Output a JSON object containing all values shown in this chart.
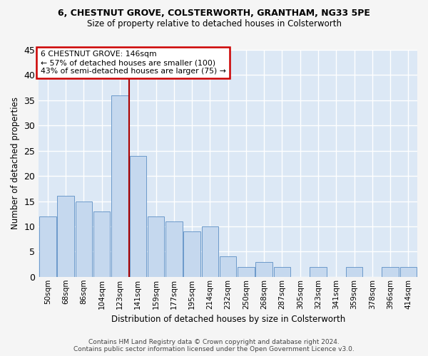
{
  "title_line1": "6, CHESTNUT GROVE, COLSTERWORTH, GRANTHAM, NG33 5PE",
  "title_line2": "Size of property relative to detached houses in Colsterworth",
  "xlabel": "Distribution of detached houses by size in Colsterworth",
  "ylabel": "Number of detached properties",
  "categories": [
    "50sqm",
    "68sqm",
    "86sqm",
    "104sqm",
    "123sqm",
    "141sqm",
    "159sqm",
    "177sqm",
    "195sqm",
    "214sqm",
    "232sqm",
    "250sqm",
    "268sqm",
    "287sqm",
    "305sqm",
    "323sqm",
    "341sqm",
    "359sqm",
    "378sqm",
    "396sqm",
    "414sqm"
  ],
  "values": [
    12,
    16,
    15,
    13,
    36,
    24,
    12,
    11,
    9,
    10,
    4,
    2,
    3,
    2,
    0,
    2,
    0,
    2,
    0,
    2,
    2
  ],
  "bar_color": "#c5d8ee",
  "bar_edge_color": "#5b8ec4",
  "vline_x": 4.5,
  "vline_color": "#aa0000",
  "annotation_line1": "6 CHESTNUT GROVE: 146sqm",
  "annotation_line2": "← 57% of detached houses are smaller (100)",
  "annotation_line3": "43% of semi-detached houses are larger (75) →",
  "annotation_box_facecolor": "#ffffff",
  "annotation_box_edgecolor": "#cc0000",
  "ylim": [
    0,
    45
  ],
  "yticks": [
    0,
    5,
    10,
    15,
    20,
    25,
    30,
    35,
    40,
    45
  ],
  "background_color": "#dce8f5",
  "grid_color": "#ffffff",
  "fig_background": "#f5f5f5",
  "footer_line1": "Contains HM Land Registry data © Crown copyright and database right 2024.",
  "footer_line2": "Contains public sector information licensed under the Open Government Licence v3.0."
}
